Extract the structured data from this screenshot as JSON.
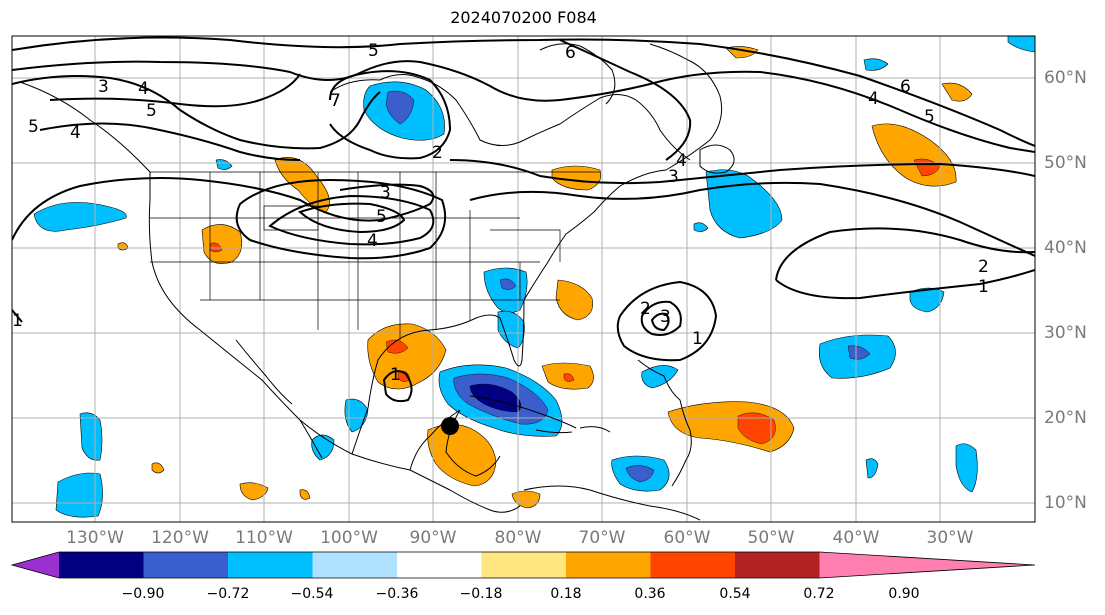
{
  "title": "2024070200 F084",
  "longitude_labels": [
    "130°W",
    "120°W",
    "110°W",
    "100°W",
    "90°W",
    "80°W",
    "70°W",
    "60°W",
    "50°W",
    "40°W",
    "30°W"
  ],
  "latitude_labels": [
    "60°N",
    "50°N",
    "40°N",
    "30°N",
    "20°N",
    "10°N"
  ],
  "contour_labels": [
    "5",
    "6",
    "3",
    "4",
    "5",
    "5",
    "4",
    "7",
    "2",
    "3",
    "5",
    "4",
    "6",
    "4",
    "5",
    "3",
    "4",
    "2",
    "1",
    "2",
    "3",
    "1",
    "1",
    "1"
  ],
  "colorbar": {
    "ticks": [
      "−0.90",
      "−0.72",
      "−0.54",
      "−0.36",
      "−0.18",
      "0.18",
      "0.36",
      "0.54",
      "0.72",
      "0.90"
    ],
    "colors": [
      "#9b30d0",
      "#000080",
      "#3a5fcd",
      "#00bfff",
      "#b0e2ff",
      "#ffffff",
      "#ffe680",
      "#ffa500",
      "#ff4500",
      "#b22222",
      "#ff80b0"
    ]
  },
  "colors": {
    "orange": "#ffa500",
    "red_orange": "#ff4500",
    "light_blue": "#00bfff",
    "mid_blue": "#3a5fcd",
    "navy": "#000080",
    "gridline": "#b0b0b0"
  }
}
